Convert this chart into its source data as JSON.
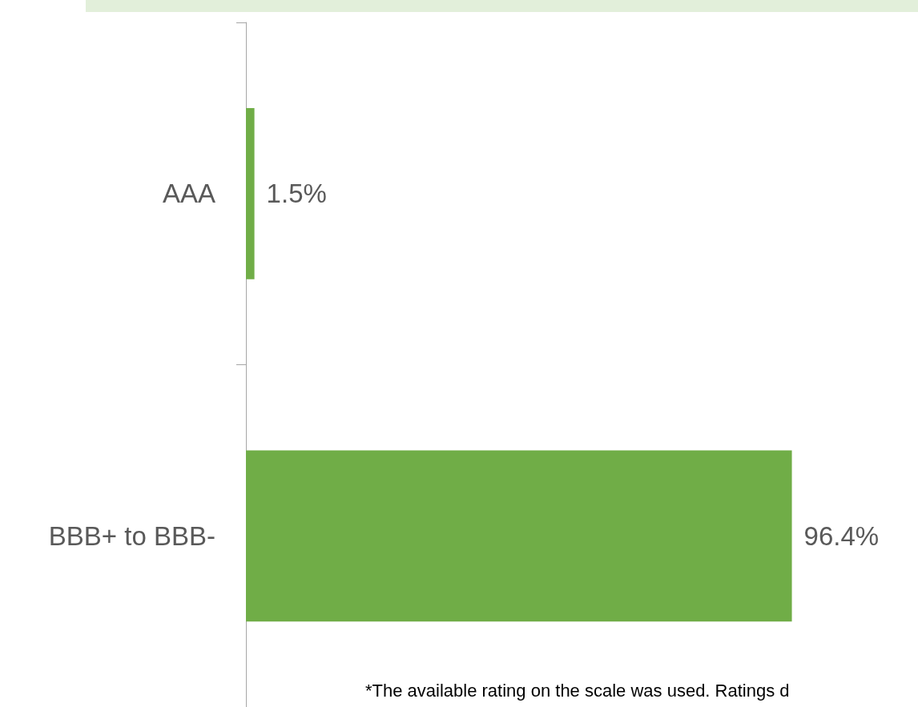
{
  "chart_data": {
    "type": "bar",
    "orientation": "horizontal",
    "categories": [
      "AAA",
      "BBB+ to BBB-"
    ],
    "values": [
      1.5,
      96.4
    ],
    "color": "#70ad47",
    "value_labels": [
      "1.5%",
      "96.4%"
    ],
    "annotations": [
      "*The available rating on the scale was used. Ratings d"
    ]
  }
}
